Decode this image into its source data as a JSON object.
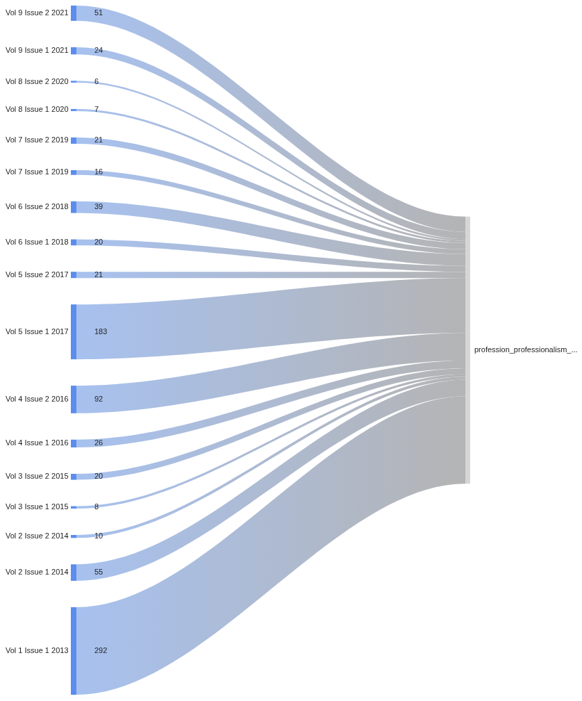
{
  "chart_data": {
    "type": "other",
    "categories": [
      "Vol 9 Issue 2 2021",
      "Vol 9 Issue 1 2021",
      "Vol 8 Issue 2 2020",
      "Vol 8 Issue 1 2020",
      "Vol 7 Issue 2 2019",
      "Vol 7 Issue 1 2019",
      "Vol 6 Issue 2 2018",
      "Vol 6 Issue 1 2018",
      "Vol 5 Issue 2 2017",
      "Vol 5 Issue 1 2017",
      "Vol 4 Issue 2 2016",
      "Vol 4 Issue 1 2016",
      "Vol 3 Issue 2 2015",
      "Vol 3 Issue 1 2015",
      "Vol 2 Issue 2 2014",
      "Vol 2 Issue 1 2014",
      "Vol 1 Issue 1 2013"
    ],
    "values": [
      51,
      24,
      6,
      7,
      21,
      16,
      39,
      20,
      21,
      183,
      92,
      26,
      20,
      8,
      10,
      55,
      292
    ],
    "data_labels": true,
    "annotations": [
      "profession_professionalism_..."
    ]
  }
}
